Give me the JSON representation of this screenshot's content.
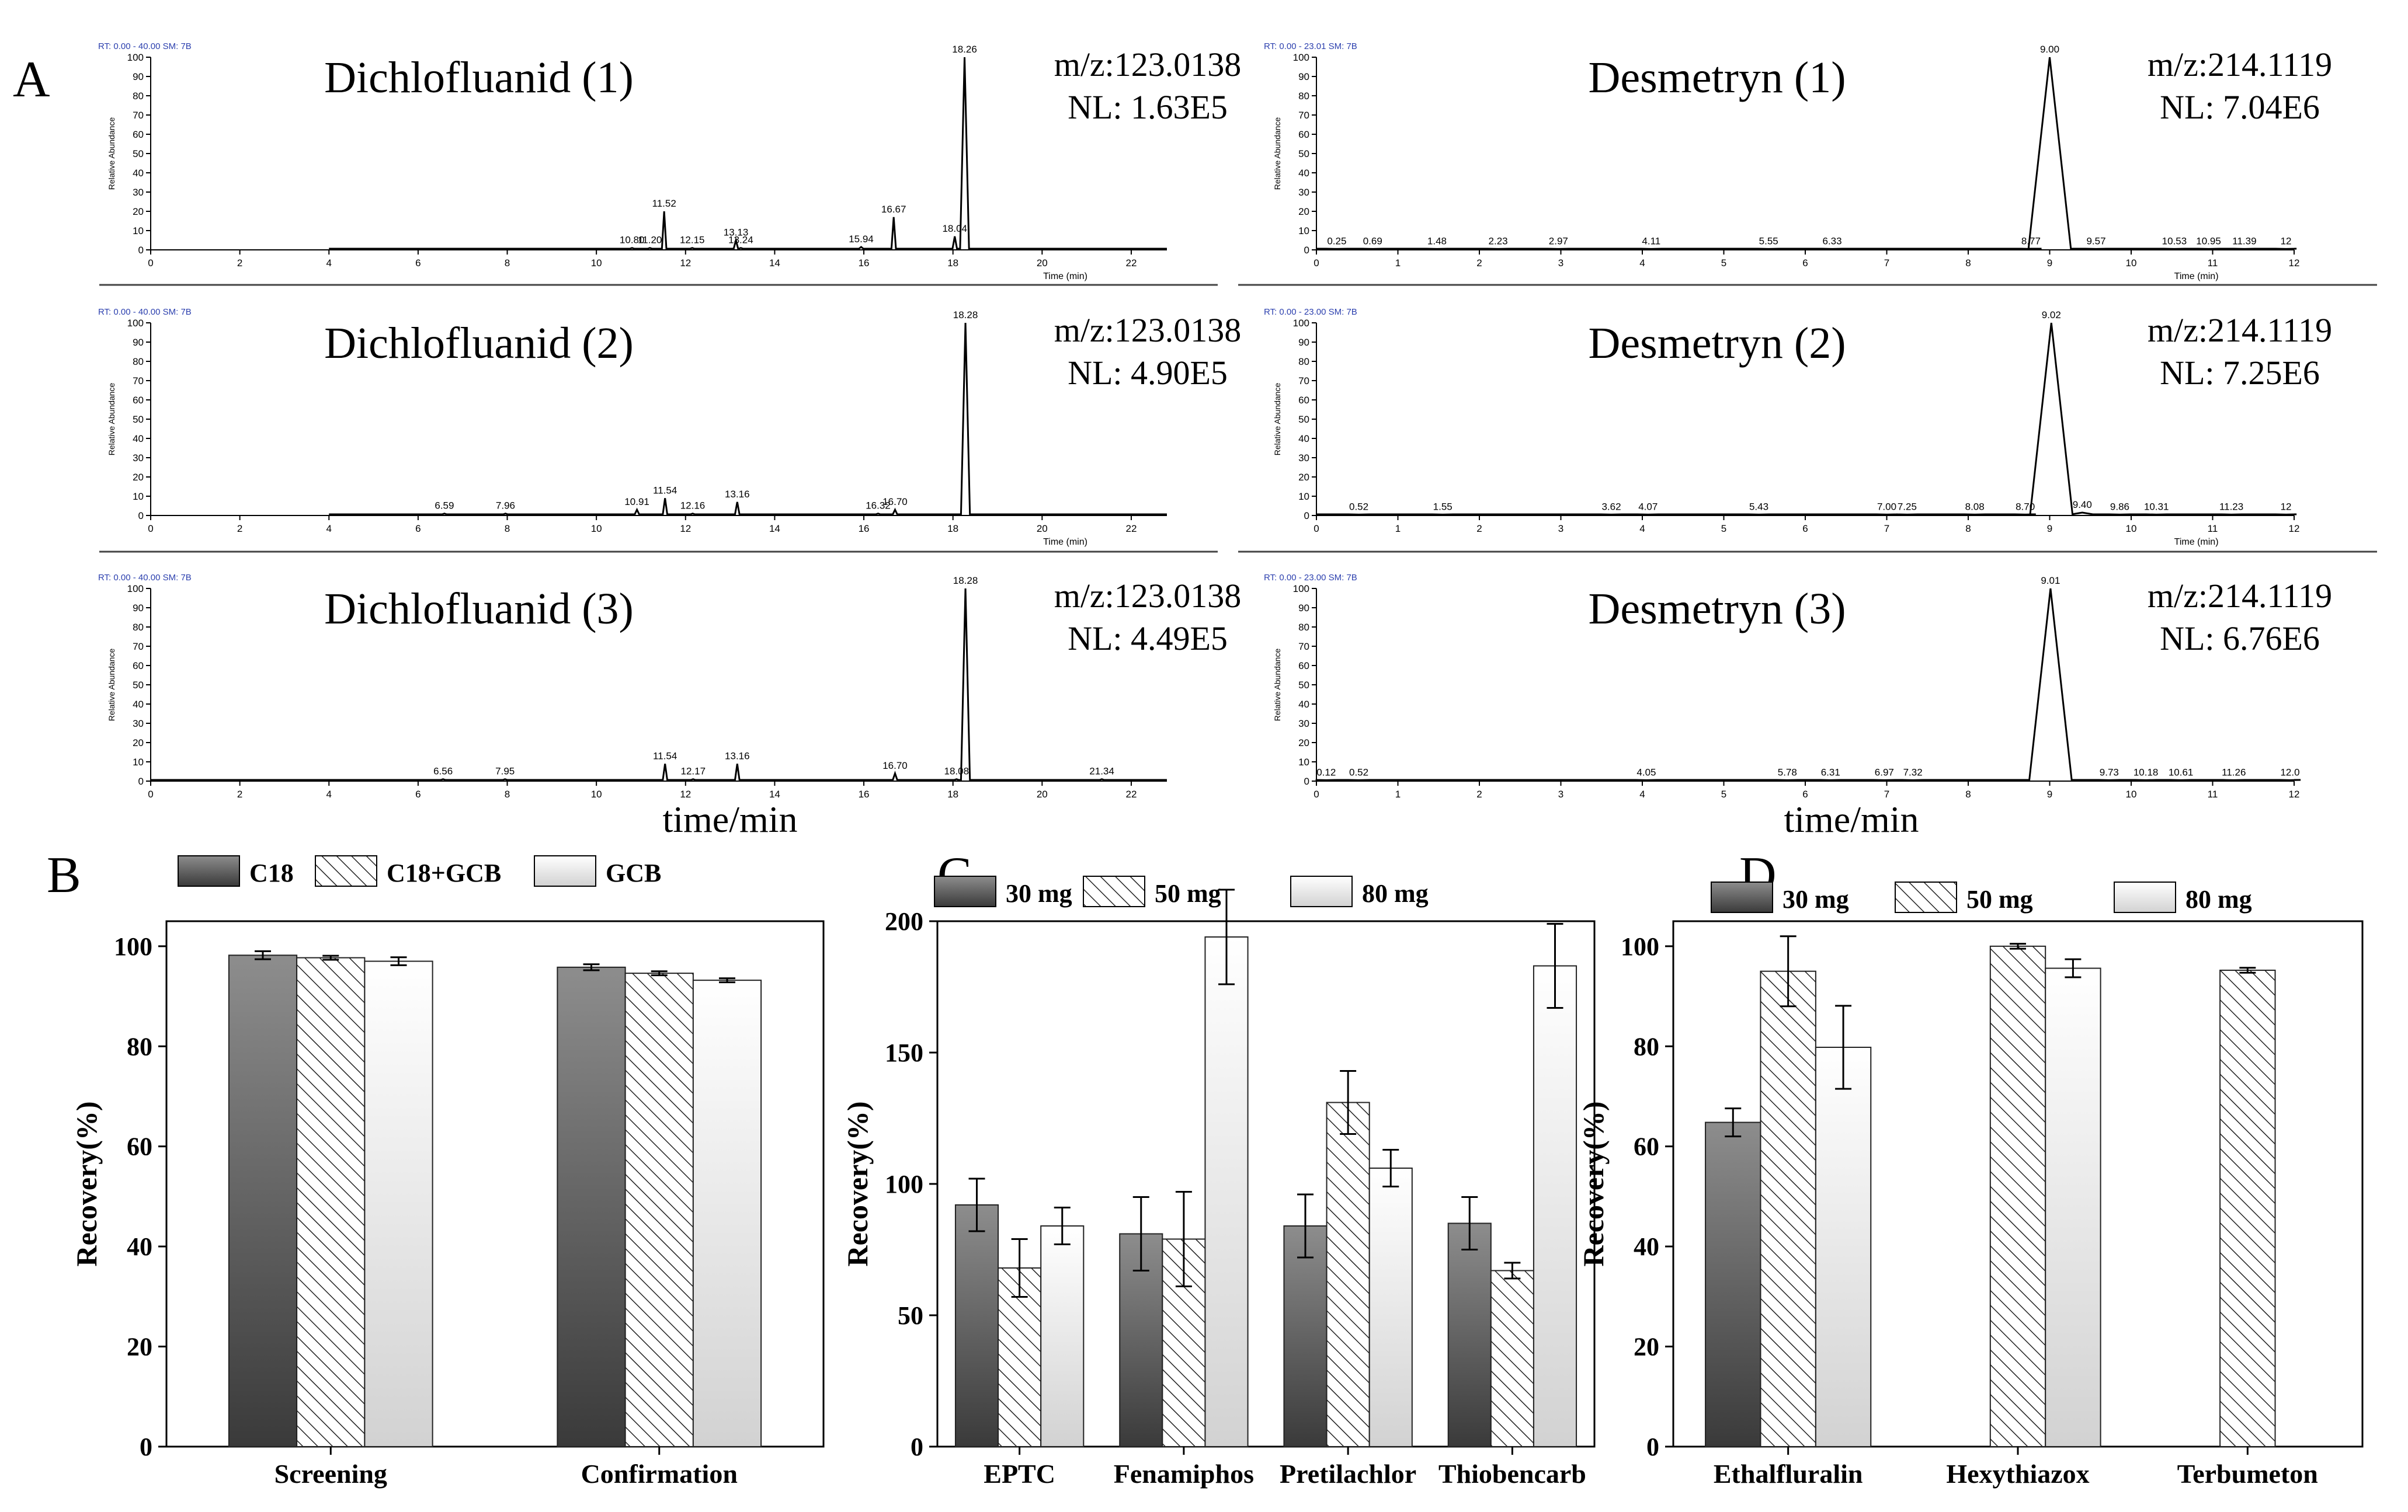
{
  "panels": {
    "A": {
      "letter": "A",
      "x_title": "time/min",
      "chromatograms": [
        {
          "rt_label": "RT: 0.00 - 40.00  SM: 7B",
          "compound": "Dichlofluanid (1)",
          "mz": "m/z:123.0138",
          "nl": "NL: 1.63E5",
          "x_range": [
            0,
            22.8
          ],
          "x_ticks": [
            0,
            2,
            4,
            6,
            8,
            10,
            12,
            14,
            16,
            18,
            20,
            22
          ],
          "xlabel": "Time (min)",
          "ylabel": "Relative Abundance",
          "y_range": [
            0,
            100
          ],
          "y_ticks": [
            0,
            10,
            20,
            30,
            40,
            50,
            60,
            70,
            80,
            90,
            100
          ],
          "baseline_start": 4,
          "peak_width": 0.05,
          "peaks": [
            {
              "rt": 18.26,
              "h": 100,
              "label": "18.26"
            },
            {
              "rt": 11.52,
              "h": 20,
              "label": "11.52"
            },
            {
              "rt": 16.67,
              "h": 17,
              "label": "16.67"
            },
            {
              "rt": 13.13,
              "h": 5,
              "label": "13.13"
            },
            {
              "rt": 18.04,
              "h": 7,
              "label": "18.04"
            },
            {
              "rt": 10.8,
              "h": 1,
              "label": "10.80"
            },
            {
              "rt": 11.2,
              "h": 1,
              "label": "11.20"
            },
            {
              "rt": 12.15,
              "h": 1,
              "label": "12.15"
            },
            {
              "rt": 13.24,
              "h": 1,
              "label": "13.24"
            },
            {
              "rt": 15.94,
              "h": 1.5,
              "label": "15.94"
            }
          ]
        },
        {
          "rt_label": "RT: 0.00 - 40.00  SM: 7B",
          "compound": "Dichlofluanid (2)",
          "mz": "m/z:123.0138",
          "nl": "NL: 4.90E5",
          "x_range": [
            0,
            22.8
          ],
          "x_ticks": [
            0,
            2,
            4,
            6,
            8,
            10,
            12,
            14,
            16,
            18,
            20,
            22
          ],
          "xlabel": "Time (min)",
          "ylabel": "Relative Abundance",
          "y_range": [
            0,
            100
          ],
          "y_ticks": [
            0,
            10,
            20,
            30,
            40,
            50,
            60,
            70,
            80,
            90,
            100
          ],
          "baseline_start": 4,
          "peak_width": 0.05,
          "peaks": [
            {
              "rt": 18.28,
              "h": 100,
              "label": "18.28"
            },
            {
              "rt": 11.54,
              "h": 9,
              "label": "11.54"
            },
            {
              "rt": 13.16,
              "h": 7,
              "label": "13.16"
            },
            {
              "rt": 16.7,
              "h": 3,
              "label": "16.70"
            },
            {
              "rt": 10.91,
              "h": 3,
              "label": "10.91"
            },
            {
              "rt": 6.59,
              "h": 1,
              "label": "6.59"
            },
            {
              "rt": 7.96,
              "h": 1,
              "label": "7.96"
            },
            {
              "rt": 12.16,
              "h": 1,
              "label": "12.16"
            },
            {
              "rt": 16.32,
              "h": 1,
              "label": "16.32"
            }
          ]
        },
        {
          "rt_label": "RT: 0.00 - 40.00  SM: 7B",
          "compound": "Dichlofluanid (3)",
          "mz": "m/z:123.0138",
          "nl": "NL: 4.49E5",
          "x_range": [
            0,
            22.8
          ],
          "x_ticks": [
            0,
            2,
            4,
            6,
            8,
            10,
            12,
            14,
            16,
            18,
            20,
            22
          ],
          "xlabel": "",
          "ylabel": "Relative Abundance",
          "y_range": [
            0,
            100
          ],
          "y_ticks": [
            0,
            10,
            20,
            30,
            40,
            50,
            60,
            70,
            80,
            90,
            100
          ],
          "baseline_start": 0,
          "peak_width": 0.05,
          "peaks": [
            {
              "rt": 18.28,
              "h": 100,
              "label": "18.28"
            },
            {
              "rt": 11.54,
              "h": 9,
              "label": "11.54"
            },
            {
              "rt": 13.16,
              "h": 9,
              "label": "13.16"
            },
            {
              "rt": 16.7,
              "h": 4,
              "label": "16.70"
            },
            {
              "rt": 6.56,
              "h": 1,
              "label": "6.56"
            },
            {
              "rt": 7.95,
              "h": 1,
              "label": "7.95"
            },
            {
              "rt": 12.17,
              "h": 1,
              "label": "12.17"
            },
            {
              "rt": 18.08,
              "h": 1,
              "label": "18.08"
            },
            {
              "rt": 21.34,
              "h": 1,
              "label": "21.34"
            }
          ]
        },
        {
          "rt_label": "RT: 0.00 - 23.01  SM: 7B",
          "compound": "Desmetryn (1)",
          "mz": "m/z:214.1119",
          "nl": "NL: 7.04E6",
          "x_range": [
            0,
            12
          ],
          "x_ticks": [
            0,
            1,
            2,
            3,
            4,
            5,
            6,
            7,
            8,
            9,
            10,
            11,
            12
          ],
          "xlabel": "Time (min)",
          "ylabel": "Relative Abundance",
          "y_range": [
            0,
            100
          ],
          "y_ticks": [
            0,
            10,
            20,
            30,
            40,
            50,
            60,
            70,
            80,
            90,
            100
          ],
          "baseline_start": 0,
          "peak_width": 0.13,
          "peaks": [
            {
              "rt": 9.0,
              "h": 100,
              "label": "9.00"
            },
            {
              "rt": 0.25,
              "h": 0.5,
              "label": "0.25"
            },
            {
              "rt": 0.69,
              "h": 0.5,
              "label": "0.69"
            },
            {
              "rt": 1.48,
              "h": 0.5,
              "label": "1.48"
            },
            {
              "rt": 2.23,
              "h": 0.5,
              "label": "2.23"
            },
            {
              "rt": 2.97,
              "h": 0.5,
              "label": "2.97"
            },
            {
              "rt": 4.11,
              "h": 0.5,
              "label": "4.11"
            },
            {
              "rt": 5.55,
              "h": 0.5,
              "label": "5.55"
            },
            {
              "rt": 6.33,
              "h": 0.5,
              "label": "6.33"
            },
            {
              "rt": 8.77,
              "h": 0.5,
              "label": "8.77"
            },
            {
              "rt": 9.57,
              "h": 0.5,
              "label": "9.57"
            },
            {
              "rt": 10.53,
              "h": 0.5,
              "label": "10.53"
            },
            {
              "rt": 10.95,
              "h": 0.5,
              "label": "10.95"
            },
            {
              "rt": 11.39,
              "h": 0.5,
              "label": "11.39"
            },
            {
              "rt": 11.9,
              "h": 0.5,
              "label": "12"
            }
          ]
        },
        {
          "rt_label": "RT: 0.00 - 23.00  SM: 7B",
          "compound": "Desmetryn (2)",
          "mz": "m/z:214.1119",
          "nl": "NL: 7.25E6",
          "x_range": [
            0,
            12
          ],
          "x_ticks": [
            0,
            1,
            2,
            3,
            4,
            5,
            6,
            7,
            8,
            9,
            10,
            11,
            12
          ],
          "xlabel": "Time (min)",
          "ylabel": "Relative Abundance",
          "y_range": [
            0,
            100
          ],
          "y_ticks": [
            0,
            10,
            20,
            30,
            40,
            50,
            60,
            70,
            80,
            90,
            100
          ],
          "baseline_start": 0,
          "peak_width": 0.13,
          "peaks": [
            {
              "rt": 9.02,
              "h": 100,
              "label": "9.02"
            },
            {
              "rt": 0.52,
              "h": 0.5,
              "label": "0.52"
            },
            {
              "rt": 1.55,
              "h": 0.5,
              "label": "1.55"
            },
            {
              "rt": 3.62,
              "h": 0.5,
              "label": "3.62"
            },
            {
              "rt": 4.07,
              "h": 0.5,
              "label": "4.07"
            },
            {
              "rt": 5.43,
              "h": 0.5,
              "label": "5.43"
            },
            {
              "rt": 7.0,
              "h": 0.5,
              "label": "7.00"
            },
            {
              "rt": 7.25,
              "h": 0.5,
              "label": "7.25"
            },
            {
              "rt": 8.08,
              "h": 0.5,
              "label": "8.08"
            },
            {
              "rt": 8.7,
              "h": 0.5,
              "label": "8.70"
            },
            {
              "rt": 9.4,
              "h": 1.5,
              "label": "9.40"
            },
            {
              "rt": 9.86,
              "h": 0.5,
              "label": "9.86"
            },
            {
              "rt": 10.31,
              "h": 0.5,
              "label": "10.31"
            },
            {
              "rt": 11.23,
              "h": 0.5,
              "label": "11.23"
            },
            {
              "rt": 11.9,
              "h": 0.5,
              "label": "12"
            }
          ]
        },
        {
          "rt_label": "RT: 0.00 - 23.00  SM: 7B",
          "compound": "Desmetryn (3)",
          "mz": "m/z:214.1119",
          "nl": "NL: 6.76E6",
          "x_range": [
            0,
            12
          ],
          "x_ticks": [
            0,
            1,
            2,
            3,
            4,
            5,
            6,
            7,
            8,
            9,
            10,
            11,
            12
          ],
          "xlabel": "",
          "ylabel": "Relative Abundance",
          "y_range": [
            0,
            100
          ],
          "y_ticks": [
            0,
            10,
            20,
            30,
            40,
            50,
            60,
            70,
            80,
            90,
            100
          ],
          "baseline_start": 0,
          "peak_width": 0.13,
          "peaks": [
            {
              "rt": 9.01,
              "h": 100,
              "label": "9.01"
            },
            {
              "rt": 0.12,
              "h": 0.5,
              "label": "0.12"
            },
            {
              "rt": 0.52,
              "h": 0.5,
              "label": "0.52"
            },
            {
              "rt": 4.05,
              "h": 0.5,
              "label": "4.05"
            },
            {
              "rt": 5.78,
              "h": 0.5,
              "label": "5.78"
            },
            {
              "rt": 6.31,
              "h": 0.5,
              "label": "6.31"
            },
            {
              "rt": 6.97,
              "h": 0.5,
              "label": "6.97"
            },
            {
              "rt": 7.32,
              "h": 0.5,
              "label": "7.32"
            },
            {
              "rt": 9.73,
              "h": 0.5,
              "label": "9.73"
            },
            {
              "rt": 10.18,
              "h": 0.5,
              "label": "10.18"
            },
            {
              "rt": 10.61,
              "h": 0.5,
              "label": "10.61"
            },
            {
              "rt": 11.26,
              "h": 0.5,
              "label": "11.26"
            },
            {
              "rt": 11.95,
              "h": 0.5,
              "label": "12.0"
            }
          ]
        }
      ]
    }
  },
  "chart_data": [
    {
      "panel": "B",
      "type": "bar",
      "categories": [
        "Screening",
        "Confirmation"
      ],
      "series": [
        {
          "name": "C18",
          "style": "dark-gradient",
          "values": [
            98.2,
            95.8
          ],
          "errors": [
            0.8,
            0.6
          ]
        },
        {
          "name": "C18+GCB",
          "style": "hatch",
          "values": [
            97.7,
            94.6
          ],
          "errors": [
            0.4,
            0.4
          ]
        },
        {
          "name": "GCB",
          "style": "light-gradient",
          "values": [
            97.0,
            93.2
          ],
          "errors": [
            0.8,
            0.4
          ]
        }
      ],
      "ylabel": "Recovery(%)",
      "ylim": [
        0,
        105
      ],
      "y_ticks": [
        0,
        20,
        40,
        60,
        80,
        100
      ],
      "legend": "top"
    },
    {
      "panel": "C",
      "type": "bar",
      "categories": [
        "EPTC",
        "Fenamiphos",
        "Pretilachlor",
        "Thiobencarb"
      ],
      "series": [
        {
          "name": "30 mg",
          "style": "dark-gradient",
          "values": [
            92,
            81,
            84,
            85
          ],
          "errors": [
            10,
            14,
            12,
            10
          ]
        },
        {
          "name": "50 mg",
          "style": "hatch",
          "values": [
            68,
            79,
            131,
            67
          ],
          "errors": [
            11,
            18,
            12,
            3
          ]
        },
        {
          "name": "80 mg",
          "style": "light-gradient",
          "values": [
            84,
            194,
            106,
            183
          ],
          "errors": [
            7,
            18,
            7,
            16
          ]
        }
      ],
      "ylabel": "Recovery(%)",
      "ylim": [
        0,
        200
      ],
      "y_ticks": [
        0,
        50,
        100,
        150,
        200
      ],
      "legend": "top"
    },
    {
      "panel": "D",
      "type": "bar",
      "categories": [
        "Ethalfluralin",
        "Hexythiazox",
        "Terbumeton"
      ],
      "series": [
        {
          "name": "30 mg",
          "style": "dark-gradient",
          "values": [
            64.8,
            null,
            null
          ],
          "errors": [
            2.8,
            null,
            null
          ]
        },
        {
          "name": "50 mg",
          "style": "hatch",
          "values": [
            95,
            100,
            95.2
          ],
          "errors": [
            7,
            0.5,
            0.5
          ]
        },
        {
          "name": "80 mg",
          "style": "light-gradient",
          "values": [
            79.8,
            95.6,
            null
          ],
          "errors": [
            8.3,
            1.8,
            null
          ]
        }
      ],
      "ylabel": "Recovery(%)",
      "ylim": [
        0,
        105
      ],
      "y_ticks": [
        0,
        20,
        40,
        60,
        80,
        100
      ],
      "legend": "top"
    }
  ]
}
